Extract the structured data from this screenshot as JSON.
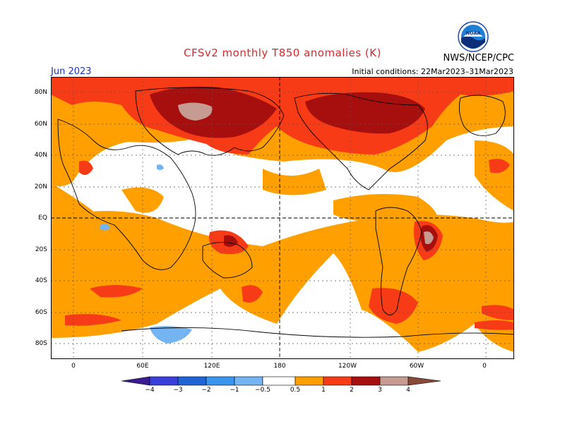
{
  "header": {
    "title": "CFSv2 monthly T850 anomalies (K)",
    "agency": "NWS/NCEP/CPC",
    "month": "Jun 2023",
    "initial_conditions": "Initial conditions: 22Mar2023–31Mar2023",
    "logo_text": "NOAA"
  },
  "axes": {
    "lat_labels": [
      "80N",
      "60N",
      "40N",
      "20N",
      "EQ",
      "20S",
      "40S",
      "60S",
      "80S"
    ],
    "lon_labels": [
      "0",
      "60E",
      "120E",
      "180",
      "120W",
      "60W",
      "0"
    ]
  },
  "colorbar": {
    "tick_labels": [
      "−4",
      "−3",
      "−2",
      "−1",
      "−0.5",
      "0.5",
      "1",
      "2",
      "3",
      "4"
    ],
    "colors": {
      "neg4": "#3b1b92",
      "neg3": "#3a3fd9",
      "neg2": "#1e64d6",
      "neg1": "#3a95ee",
      "neg05": "#74b4f3",
      "white": "#ffffff",
      "pos05": "#ff9f00",
      "pos1": "#f73b16",
      "pos2": "#a70f0f",
      "pos3": "#c59b92",
      "pos4": "#8a4a3a"
    }
  }
}
